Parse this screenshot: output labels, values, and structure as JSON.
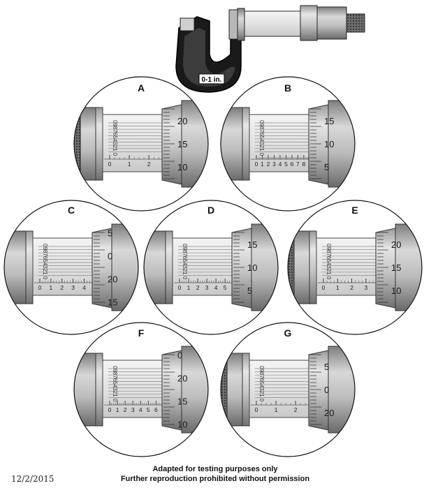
{
  "overview": {
    "frame_label": "0-1 in."
  },
  "panels": [
    {
      "letter": "A",
      "scale_digits": [
        0,
        1,
        2
      ],
      "thimble_labels": [
        "20",
        "15",
        "10"
      ],
      "ratchet": true
    },
    {
      "letter": "B",
      "scale_digits": [
        0,
        1,
        2,
        3,
        4,
        5,
        6,
        7,
        8
      ],
      "thimble_labels": [
        "15",
        "10",
        "5"
      ],
      "ratchet": false
    },
    {
      "letter": "C",
      "scale_digits": [
        0,
        1,
        2,
        3,
        4
      ],
      "thimble_labels": [
        "5",
        "0",
        "20",
        "15"
      ],
      "ratchet": false
    },
    {
      "letter": "D",
      "scale_digits": [
        0,
        1,
        2,
        3,
        4,
        5
      ],
      "thimble_labels": [
        "15",
        "10",
        "5"
      ],
      "ratchet": false
    },
    {
      "letter": "E",
      "scale_digits": [
        0,
        1,
        2,
        3
      ],
      "thimble_labels": [
        "20",
        "15",
        "10"
      ],
      "ratchet": true
    },
    {
      "letter": "F",
      "scale_digits": [
        0,
        1,
        2,
        3,
        4,
        5,
        6
      ],
      "thimble_labels": [
        "0",
        "20",
        "15",
        "10"
      ],
      "ratchet": false
    },
    {
      "letter": "G",
      "scale_digits": [
        0,
        1,
        2
      ],
      "thimble_labels": [
        "5",
        "0",
        "20"
      ],
      "ratchet": true
    }
  ],
  "vernier_digits": "0987654321 0",
  "footer": {
    "date": "12/2/2015",
    "line1": "Adapted for testing purposes only",
    "line2": "Further reproduction prohibited without permission"
  }
}
